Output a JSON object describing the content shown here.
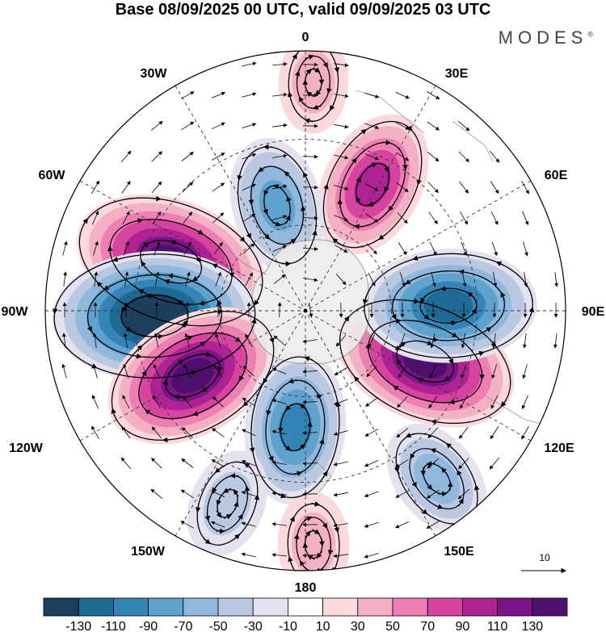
{
  "title": "Base 08/09/2025 00 UTC, valid 09/09/2025 03 UTC",
  "brand": "MODES",
  "brand_mark": "®",
  "longitude_labels": {
    "top": "0",
    "top_left": "30W",
    "top_right": "30E",
    "upper_left": "60W",
    "upper_right": "60E",
    "left": "90W",
    "right": "90E",
    "lower_left": "120W",
    "lower_right": "120E",
    "bottom_left": "150W",
    "bottom_right": "150E",
    "bottom": "180"
  },
  "reference_vector": {
    "value": "10"
  },
  "colorbar": {
    "colors": [
      "#1c3f5e",
      "#1f6a94",
      "#3584b8",
      "#5fa2ce",
      "#8fb8dc",
      "#bac8e2",
      "#e4e2ef",
      "#ffffff",
      "#fbd9dc",
      "#f5b1c4",
      "#ee7fb2",
      "#d6449f",
      "#ae2294",
      "#7b1486",
      "#4e106c"
    ],
    "tick_labels": [
      "-130",
      "-110",
      "-90",
      "-70",
      "-50",
      "-30",
      "-10",
      "10",
      "30",
      "50",
      "70",
      "90",
      "110",
      "130"
    ]
  },
  "field": {
    "anomalies": [
      {
        "name": "west-high",
        "lon": -70,
        "r": 0.55,
        "value": 125
      },
      {
        "name": "west-low",
        "lon": -92,
        "r": 0.58,
        "value": -135
      },
      {
        "name": "southwest-high",
        "lon": -120,
        "r": 0.5,
        "value": 112
      },
      {
        "name": "south-low",
        "lon": -175,
        "r": 0.45,
        "value": -80
      },
      {
        "name": "east-high-lower",
        "lon": 113,
        "r": 0.5,
        "value": 115
      },
      {
        "name": "east-low",
        "lon": 88,
        "r": 0.55,
        "value": -105
      },
      {
        "name": "northeast-high",
        "lon": 28,
        "r": 0.55,
        "value": 75
      },
      {
        "name": "north-low",
        "lon": -15,
        "r": 0.42,
        "value": -60
      },
      {
        "name": "southeast-low",
        "lon": 142,
        "r": 0.82,
        "value": -45
      },
      {
        "name": "south-high-edge",
        "lon": 178,
        "r": 0.9,
        "value": 25
      },
      {
        "name": "southwest-low-edge",
        "lon": -158,
        "r": 0.8,
        "value": -30
      },
      {
        "name": "north-high-edge",
        "lon": 2,
        "r": 0.88,
        "value": 22
      }
    ]
  }
}
